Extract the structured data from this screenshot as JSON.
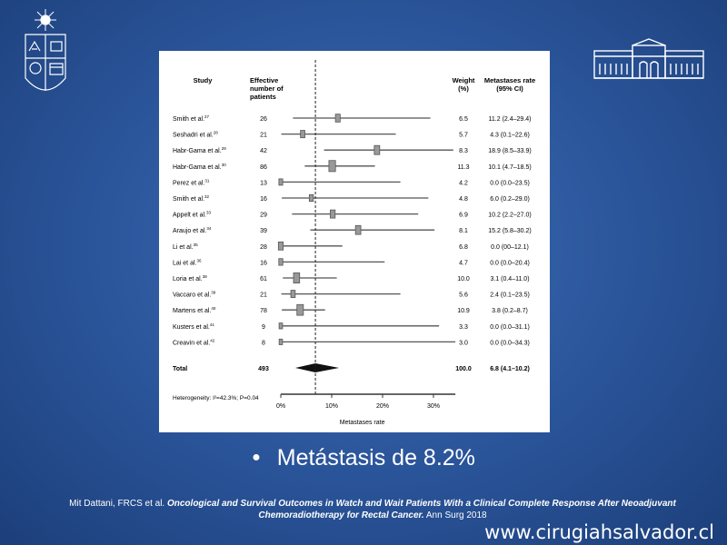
{
  "chart_data": {
    "type": "forest",
    "columns": {
      "study": "Study",
      "n": [
        "Effective",
        "number of",
        "patients"
      ],
      "weight": [
        "Weight",
        "(%)"
      ],
      "rate": [
        "Metastases rate",
        "(95% CI)"
      ]
    },
    "studies": [
      {
        "name": "Smith et al.",
        "ref": "27",
        "n": "26",
        "weight": "6.5",
        "ci_text": "11.2 (2.4–29.4)",
        "est": 11.2,
        "lo": 2.4,
        "hi": 29.4
      },
      {
        "name": "Seshadri et al.",
        "ref": "28",
        "n": "21",
        "weight": "5.7",
        "ci_text": "4.3 (0.1–22.6)",
        "est": 4.3,
        "lo": 0.1,
        "hi": 22.6
      },
      {
        "name": "Habr-Gama et al.",
        "ref": "29",
        "n": "42",
        "weight": "8.3",
        "ci_text": "18.9 (8.5–33.9)",
        "est": 18.9,
        "lo": 8.5,
        "hi": 33.9
      },
      {
        "name": "Habr-Gama et al.",
        "ref": "30",
        "n": "86",
        "weight": "11.3",
        "ci_text": "10.1 (4.7–18.5)",
        "est": 10.1,
        "lo": 4.7,
        "hi": 18.5
      },
      {
        "name": "Perez et al.",
        "ref": "31",
        "n": "13",
        "weight": "4.2",
        "ci_text": "0.0 (0.0–23.5)",
        "est": 0.0,
        "lo": 0.0,
        "hi": 23.5
      },
      {
        "name": "Smith et al.",
        "ref": "32",
        "n": "16",
        "weight": "4.8",
        "ci_text": "6.0 (0.2–29.0)",
        "est": 6.0,
        "lo": 0.2,
        "hi": 29.0
      },
      {
        "name": "Appelt et al.",
        "ref": "33",
        "n": "29",
        "weight": "6.9",
        "ci_text": "10.2 (2.2–27.0)",
        "est": 10.2,
        "lo": 2.2,
        "hi": 27.0
      },
      {
        "name": "Araujo et al.",
        "ref": "34",
        "n": "39",
        "weight": "8.1",
        "ci_text": "15.2 (5.8–30.2)",
        "est": 15.2,
        "lo": 5.8,
        "hi": 30.2
      },
      {
        "name": "Li et al.",
        "ref": "35",
        "n": "28",
        "weight": "6.8",
        "ci_text": "0.0 (00–12.1)",
        "est": 0.0,
        "lo": 0.0,
        "hi": 12.1
      },
      {
        "name": "Lai et al.",
        "ref": "36",
        "n": "16",
        "weight": "4.7",
        "ci_text": "0.0 (0.0–20.4)",
        "est": 0.0,
        "lo": 0.0,
        "hi": 20.4
      },
      {
        "name": "Loria et al.",
        "ref": "38",
        "n": "61",
        "weight": "10.0",
        "ci_text": "3.1 (0.4–11.0)",
        "est": 3.1,
        "lo": 0.4,
        "hi": 11.0
      },
      {
        "name": "Vaccaro et al.",
        "ref": "39",
        "n": "21",
        "weight": "5.6",
        "ci_text": "2.4 (0.1–23.5)",
        "est": 2.4,
        "lo": 0.1,
        "hi": 23.5
      },
      {
        "name": "Martens et al.",
        "ref": "40",
        "n": "78",
        "weight": "10.9",
        "ci_text": "3.8 (0.2–8.7)",
        "est": 3.8,
        "lo": 0.2,
        "hi": 8.7
      },
      {
        "name": "Kusters et al.",
        "ref": "41",
        "n": "9",
        "weight": "3.3",
        "ci_text": "0.0 (0.0–31.1)",
        "est": 0.0,
        "lo": 0.0,
        "hi": 31.1
      },
      {
        "name": "Creavin et al.",
        "ref": "42",
        "n": "8",
        "weight": "3.0",
        "ci_text": "0.0 (0.0–34.3)",
        "est": 0.0,
        "lo": 0.0,
        "hi": 34.3
      }
    ],
    "total": {
      "label": "Total",
      "n": "493",
      "weight": "100.0",
      "ci_text": "6.8 (4.1–10.2)",
      "est": 6.8,
      "lo": 4.1,
      "hi": 10.2
    },
    "heterogeneity": "Heterogeneity: I²=42.3%; P=0.04",
    "x_ticks": [
      0,
      10,
      20,
      30
    ],
    "x_tick_labels": [
      "0%",
      "10%",
      "20%",
      "30%"
    ],
    "xlim": [
      0,
      34.3
    ],
    "xlabel": "Metastases rate"
  },
  "slide": {
    "bullet": "Metástasis de 8.2%",
    "citation_authors": "Mit Dattani, FRCS  et al.",
    "citation_title": "Oncological and Survival Outcomes in Watch and Wait Patients With a Clinical Complete Response After Neoadjuvant Chemoradiotherapy for Rectal Cancer.",
    "citation_journal": "Ann Surg 2018",
    "website": "www.cirugiahsalvador.cl"
  },
  "colors": {
    "background": "#2a5499",
    "panel": "#ffffff",
    "box": "#999999",
    "diamond": "#111111"
  },
  "icons": {
    "left_logo": "university-crest-icon",
    "right_logo": "hospital-building-icon"
  }
}
